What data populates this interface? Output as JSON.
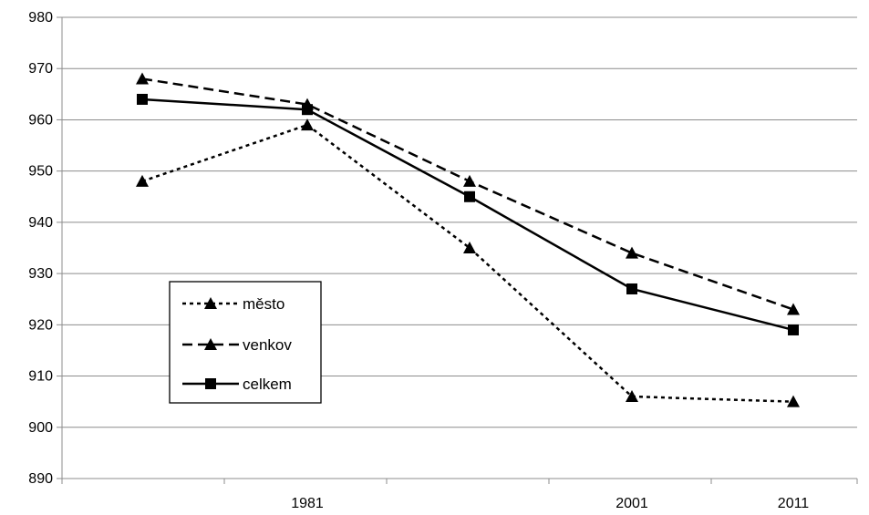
{
  "chart_data": {
    "type": "line",
    "title": "",
    "xlabel": "",
    "ylabel": "",
    "ylim": [
      890,
      980
    ],
    "yticks": [
      890,
      900,
      910,
      920,
      930,
      940,
      950,
      960,
      970,
      980
    ],
    "x_tick_labels": [
      "1981",
      "2001",
      "2011"
    ],
    "categories": [
      "",
      "1981",
      "",
      "2001",
      "2011"
    ],
    "grid": "horizontal",
    "legend_position": "left-lower",
    "series": [
      {
        "name": "město",
        "values": [
          948,
          959,
          935,
          906,
          905
        ],
        "line_style": "dotted",
        "marker": "triangle"
      },
      {
        "name": "venkov",
        "values": [
          968,
          963,
          948,
          934,
          923
        ],
        "line_style": "dashed",
        "marker": "triangle"
      },
      {
        "name": "celkem",
        "values": [
          964,
          962,
          945,
          927,
          919
        ],
        "line_style": "solid",
        "marker": "square"
      }
    ]
  }
}
